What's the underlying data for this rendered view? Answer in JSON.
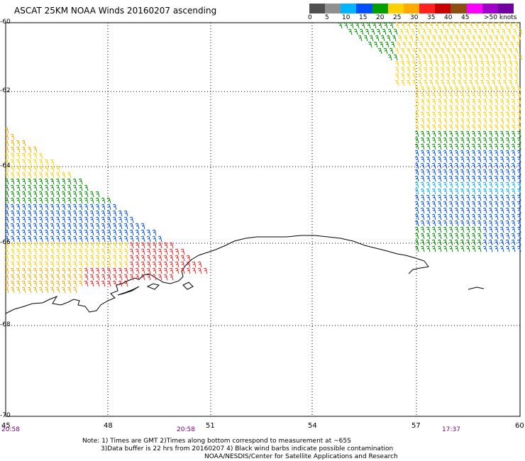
{
  "title": "ASCAT 25KM NOAA Winds 20160207 ascending",
  "legend": {
    "labels": [
      "0",
      "5",
      "10",
      "15",
      "20",
      "25",
      "30",
      "35",
      "40",
      "45",
      ">50 knots"
    ],
    "colors": [
      "#505050",
      "#909090",
      "#00b4ff",
      "#0050ff",
      "#00a000",
      "#ffd000",
      "#ffaa00",
      "#ff2020",
      "#c80000",
      "#8c5014",
      "#ff00ff",
      "#a000c8",
      "#7000a0"
    ]
  },
  "map": {
    "lat_labels": [
      "-60",
      "-62",
      "-64",
      "-66",
      "-68",
      "-70"
    ],
    "lon_labels": [
      "45",
      "48",
      "51",
      "54",
      "57",
      "60"
    ],
    "time_labels": [
      "20:58",
      "20:58",
      "17:37"
    ],
    "coast_color": "#000000",
    "grid_color": "#000000"
  },
  "notes": [
    "Note: 1) Times are GMT 2)Times along bottom correspond to measurement at ~65S",
    "3)Data buffer is 22 hrs from 20160207 4) Black wind barbs indicate possible contamination",
    "NOAA/NESDIS/Center for Satellite Applications and Research"
  ]
}
